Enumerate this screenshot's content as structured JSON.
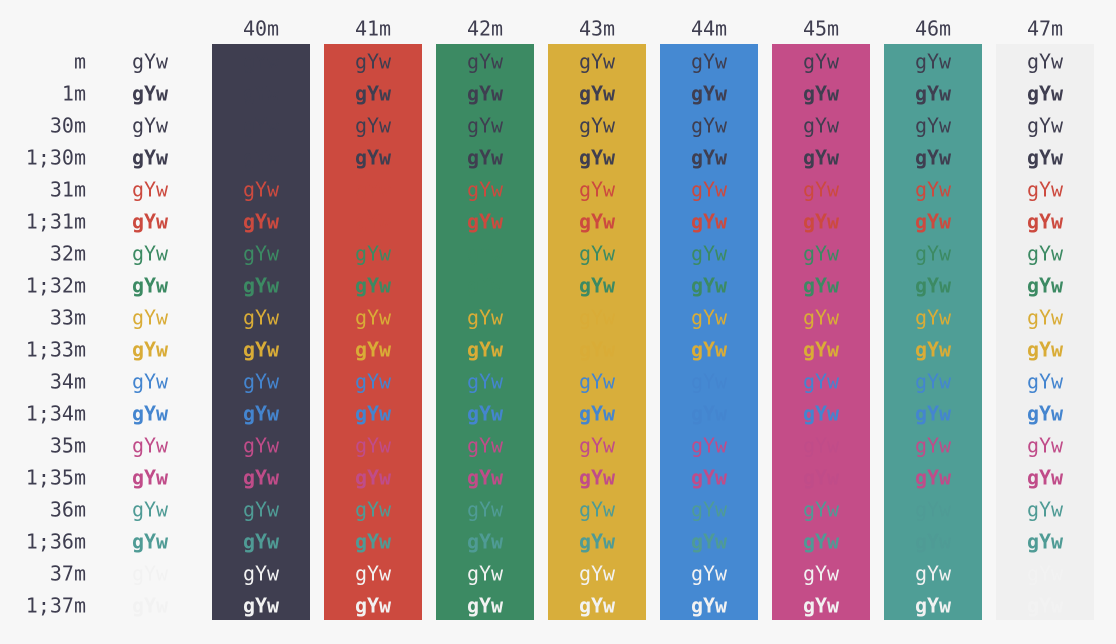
{
  "sample": "gYw",
  "columns": [
    {
      "label": "40m",
      "color": "#3f3e50"
    },
    {
      "label": "41m",
      "color": "#cc4a3f"
    },
    {
      "label": "42m",
      "color": "#3c8a63"
    },
    {
      "label": "43m",
      "color": "#d8ae3b"
    },
    {
      "label": "44m",
      "color": "#4589d2"
    },
    {
      "label": "45m",
      "color": "#c44d88"
    },
    {
      "label": "46m",
      "color": "#4f9e96"
    },
    {
      "label": "47m",
      "color": "#f0f0f0"
    }
  ],
  "rows": [
    {
      "label": "m",
      "color": "#3f3e50",
      "bold": false
    },
    {
      "label": "1m",
      "color": "#3f3e50",
      "bold": true
    },
    {
      "label": "30m",
      "color": "#3f3e50",
      "bold": false
    },
    {
      "label": "1;30m",
      "color": "#3f3e50",
      "bold": true
    },
    {
      "label": "31m",
      "color": "#cc4a3f",
      "bold": false
    },
    {
      "label": "1;31m",
      "color": "#cc4a3f",
      "bold": true
    },
    {
      "label": "32m",
      "color": "#3c8a63",
      "bold": false
    },
    {
      "label": "1;32m",
      "color": "#3c8a63",
      "bold": true
    },
    {
      "label": "33m",
      "color": "#d9ac37",
      "bold": false
    },
    {
      "label": "1;33m",
      "color": "#d9ac37",
      "bold": true
    },
    {
      "label": "34m",
      "color": "#4485cf",
      "bold": false
    },
    {
      "label": "1;34m",
      "color": "#4485cf",
      "bold": true
    },
    {
      "label": "35m",
      "color": "#c04c89",
      "bold": false
    },
    {
      "label": "1;35m",
      "color": "#c04c89",
      "bold": true
    },
    {
      "label": "36m",
      "color": "#4f9b95",
      "bold": false
    },
    {
      "label": "1;36m",
      "color": "#4f9b95",
      "bold": true
    },
    {
      "label": "37m",
      "color": "#f2f2f2",
      "bold": false
    },
    {
      "label": "1;37m",
      "color": "#f2f2f2",
      "bold": true
    }
  ]
}
